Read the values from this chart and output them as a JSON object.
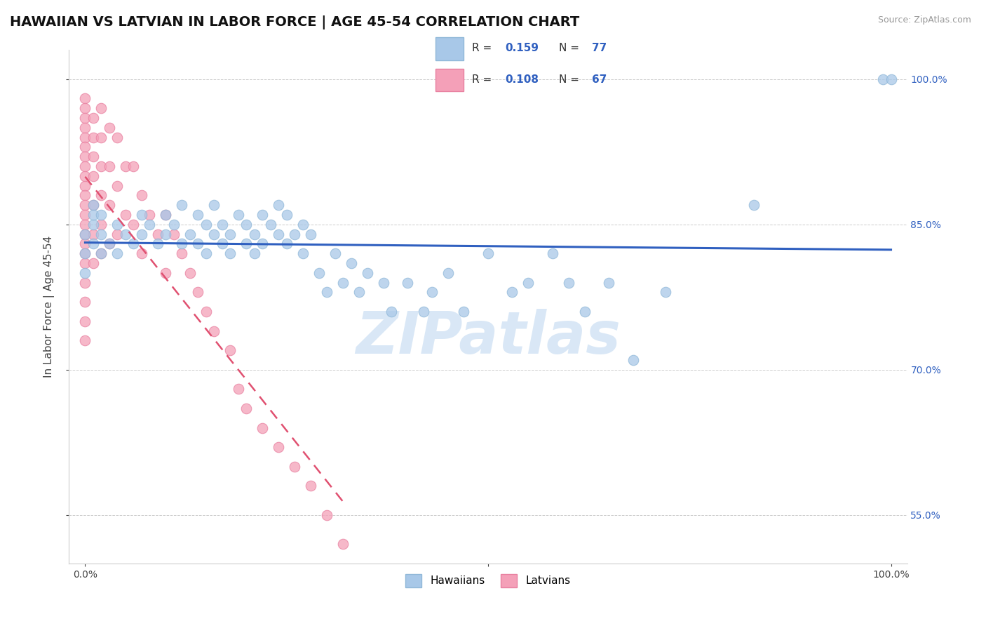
{
  "title": "HAWAIIAN VS LATVIAN IN LABOR FORCE | AGE 45-54 CORRELATION CHART",
  "source_text": "Source: ZipAtlas.com",
  "ylabel": "In Labor Force | Age 45-54",
  "xlim": [
    -0.02,
    1.02
  ],
  "ylim": [
    0.5,
    1.03
  ],
  "yticks": [
    0.55,
    0.7,
    0.85,
    1.0
  ],
  "ytick_labels": [
    "55.0%",
    "70.0%",
    "85.0%",
    "100.0%"
  ],
  "blue_color": "#a8c8e8",
  "blue_edge_color": "#90b8d8",
  "blue_line_color": "#3060c0",
  "pink_color": "#f4a0b8",
  "pink_edge_color": "#e880a0",
  "pink_line_color": "#e05070",
  "watermark": "ZIPatlas",
  "watermark_blue": "#c0d8f0",
  "background_color": "#ffffff",
  "title_fontsize": 14,
  "axis_label_fontsize": 11,
  "tick_fontsize": 10,
  "hawaiian_x": [
    0.0,
    0.0,
    0.0,
    0.01,
    0.01,
    0.01,
    0.01,
    0.02,
    0.02,
    0.02,
    0.03,
    0.04,
    0.04,
    0.05,
    0.06,
    0.07,
    0.07,
    0.08,
    0.09,
    0.1,
    0.1,
    0.11,
    0.12,
    0.12,
    0.13,
    0.14,
    0.14,
    0.15,
    0.15,
    0.16,
    0.16,
    0.17,
    0.17,
    0.18,
    0.18,
    0.19,
    0.2,
    0.2,
    0.21,
    0.21,
    0.22,
    0.22,
    0.23,
    0.24,
    0.24,
    0.25,
    0.25,
    0.26,
    0.27,
    0.27,
    0.28,
    0.29,
    0.3,
    0.31,
    0.32,
    0.33,
    0.34,
    0.35,
    0.37,
    0.38,
    0.4,
    0.42,
    0.43,
    0.45,
    0.47,
    0.5,
    0.53,
    0.55,
    0.58,
    0.6,
    0.62,
    0.65,
    0.68,
    0.72,
    0.83,
    0.99,
    1.0
  ],
  "hawaiian_y": [
    0.84,
    0.82,
    0.8,
    0.85,
    0.83,
    0.87,
    0.86,
    0.84,
    0.82,
    0.86,
    0.83,
    0.85,
    0.82,
    0.84,
    0.83,
    0.86,
    0.84,
    0.85,
    0.83,
    0.86,
    0.84,
    0.85,
    0.83,
    0.87,
    0.84,
    0.86,
    0.83,
    0.85,
    0.82,
    0.84,
    0.87,
    0.83,
    0.85,
    0.84,
    0.82,
    0.86,
    0.83,
    0.85,
    0.84,
    0.82,
    0.86,
    0.83,
    0.85,
    0.84,
    0.87,
    0.83,
    0.86,
    0.84,
    0.85,
    0.82,
    0.84,
    0.8,
    0.78,
    0.82,
    0.79,
    0.81,
    0.78,
    0.8,
    0.79,
    0.76,
    0.79,
    0.76,
    0.78,
    0.8,
    0.76,
    0.82,
    0.78,
    0.79,
    0.82,
    0.79,
    0.76,
    0.79,
    0.71,
    0.78,
    0.87,
    1.0,
    1.0
  ],
  "latvian_x": [
    0.0,
    0.0,
    0.0,
    0.0,
    0.0,
    0.0,
    0.0,
    0.0,
    0.0,
    0.0,
    0.0,
    0.0,
    0.0,
    0.0,
    0.0,
    0.0,
    0.0,
    0.0,
    0.0,
    0.0,
    0.0,
    0.0,
    0.01,
    0.01,
    0.01,
    0.01,
    0.01,
    0.01,
    0.01,
    0.02,
    0.02,
    0.02,
    0.02,
    0.02,
    0.02,
    0.03,
    0.03,
    0.03,
    0.03,
    0.04,
    0.04,
    0.04,
    0.05,
    0.05,
    0.06,
    0.06,
    0.07,
    0.07,
    0.08,
    0.09,
    0.1,
    0.1,
    0.11,
    0.12,
    0.13,
    0.14,
    0.15,
    0.16,
    0.18,
    0.19,
    0.2,
    0.22,
    0.24,
    0.26,
    0.28,
    0.3,
    0.32
  ],
  "latvian_y": [
    0.98,
    0.97,
    0.96,
    0.95,
    0.94,
    0.93,
    0.92,
    0.91,
    0.9,
    0.89,
    0.88,
    0.87,
    0.86,
    0.85,
    0.84,
    0.83,
    0.82,
    0.81,
    0.79,
    0.77,
    0.75,
    0.73,
    0.96,
    0.94,
    0.92,
    0.9,
    0.87,
    0.84,
    0.81,
    0.97,
    0.94,
    0.91,
    0.88,
    0.85,
    0.82,
    0.95,
    0.91,
    0.87,
    0.83,
    0.94,
    0.89,
    0.84,
    0.91,
    0.86,
    0.91,
    0.85,
    0.88,
    0.82,
    0.86,
    0.84,
    0.86,
    0.8,
    0.84,
    0.82,
    0.8,
    0.78,
    0.76,
    0.74,
    0.72,
    0.68,
    0.66,
    0.64,
    0.62,
    0.6,
    0.58,
    0.55,
    0.52
  ]
}
